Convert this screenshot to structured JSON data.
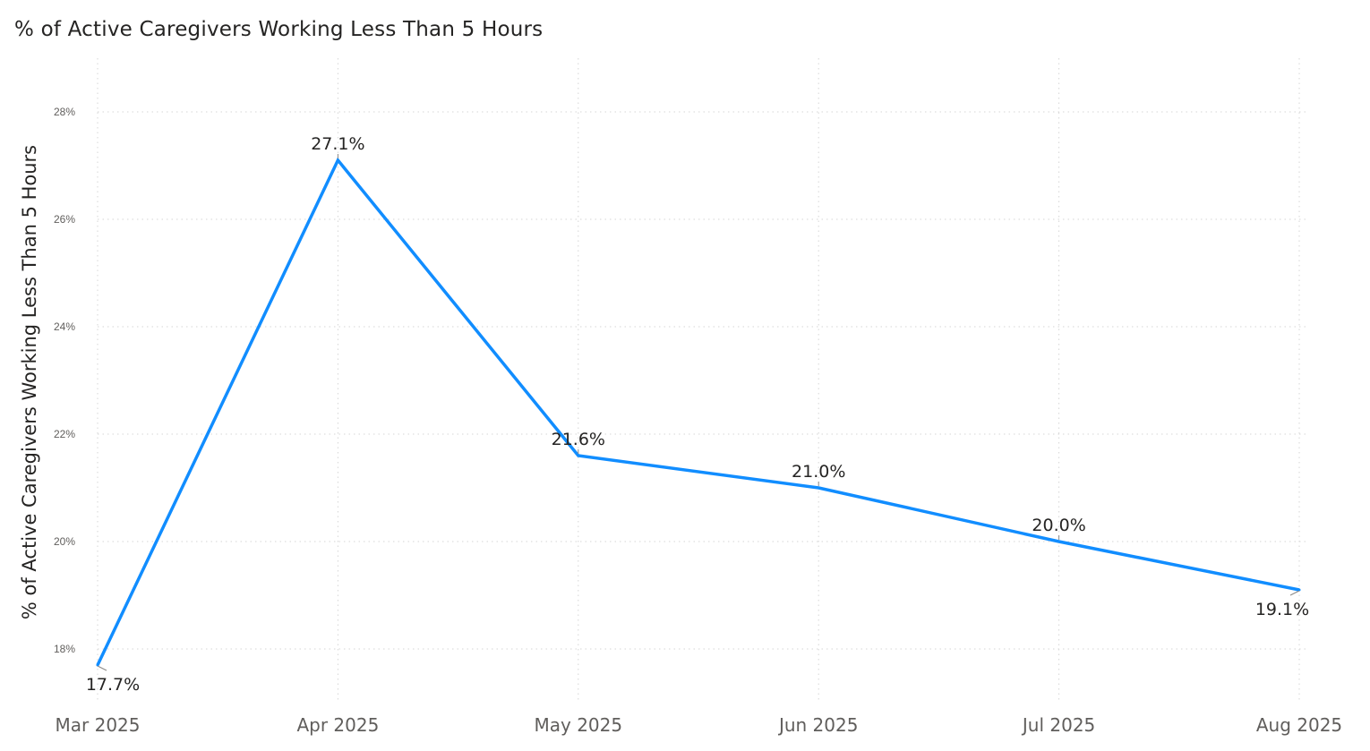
{
  "chart_data": {
    "type": "line",
    "title": "% of Active Caregivers Working Less Than 5 Hours",
    "xlabel": "",
    "ylabel": "% of Active Caregivers Working Less Than 5 Hours",
    "categories": [
      "Mar 2025",
      "Apr 2025",
      "May 2025",
      "Jun 2025",
      "Jul 2025",
      "Aug 2025"
    ],
    "series": [
      {
        "values": [
          17.7,
          27.1,
          21.6,
          21.0,
          20.0,
          19.1
        ],
        "labels": [
          "17.7%",
          "27.1%",
          "21.6%",
          "21.0%",
          "20.0%",
          "19.1%"
        ],
        "color": "#118DFF"
      }
    ],
    "ylim": [
      17.0,
      29.0
    ],
    "yticks": [
      18,
      20,
      22,
      24,
      26,
      28
    ],
    "ytick_labels": [
      "18%",
      "20%",
      "22%",
      "24%",
      "26%",
      "28%"
    ],
    "grid": true,
    "legend": "none"
  }
}
